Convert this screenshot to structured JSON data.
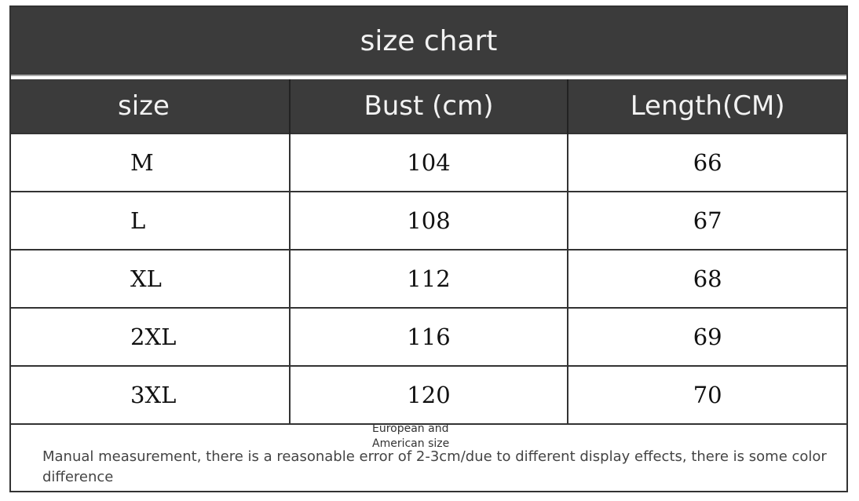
{
  "title": "size chart",
  "headers": [
    "size",
    "Bust (cm)",
    "Length(CM)"
  ],
  "rows": [
    [
      "M",
      "104",
      "66"
    ],
    [
      "L",
      "108",
      "67"
    ],
    [
      "XL",
      "112",
      "68"
    ],
    [
      "2XL",
      "116",
      "69"
    ],
    [
      "3XL",
      "120",
      "70"
    ]
  ],
  "footer": {
    "region_note": "European and American size",
    "note": "Manual measurement, there is a reasonable error of 2-3cm/due to different display effects, there is some color difference"
  },
  "colors": {
    "header_bg": "#3b3b3b",
    "header_text": "#f2f2f2",
    "border": "#333333"
  }
}
